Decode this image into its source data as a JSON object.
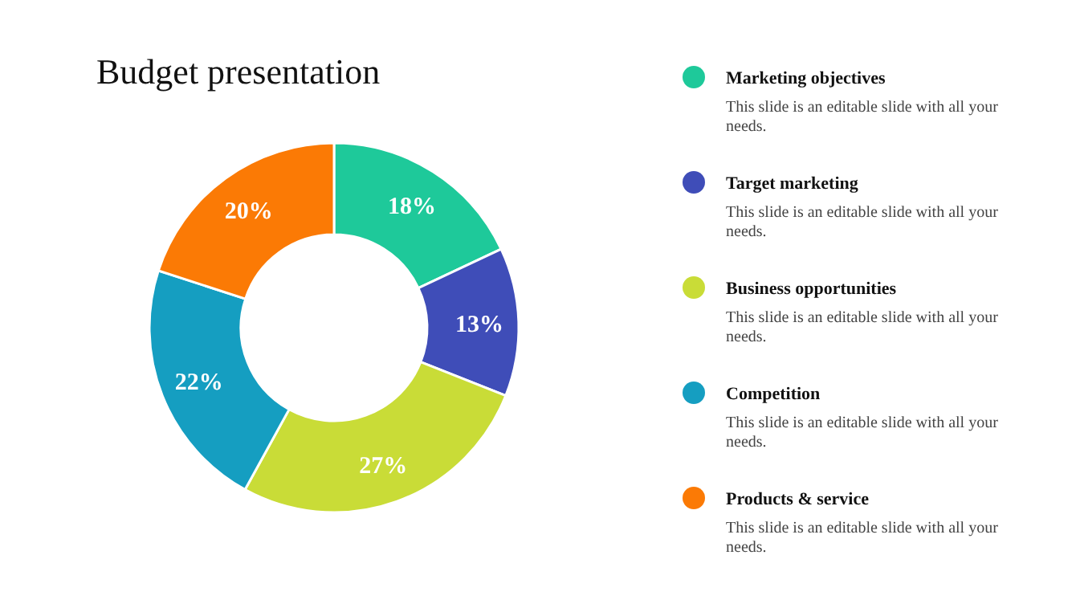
{
  "chart_data": {
    "type": "donut",
    "title": "Budget presentation",
    "categories": [
      "Marketing objectives",
      "Target marketing",
      "Business opportunities",
      "Competition",
      "Products & service"
    ],
    "values": [
      18,
      13,
      27,
      22,
      20
    ],
    "value_labels": [
      "18%",
      "13%",
      "27%",
      "22%",
      "20%"
    ],
    "colors": [
      "#1ec99a",
      "#3f4db8",
      "#c9dc37",
      "#159ec1",
      "#fb7a05"
    ],
    "legend": "right",
    "annotations": [
      "This slide is an editable slide with all your needs.",
      "This slide is an editable slide with all your needs.",
      "This slide is an editable slide with all your needs.",
      "This slide is an editable slide with all your needs.",
      "This slide is an editable slide with all your needs."
    ]
  }
}
